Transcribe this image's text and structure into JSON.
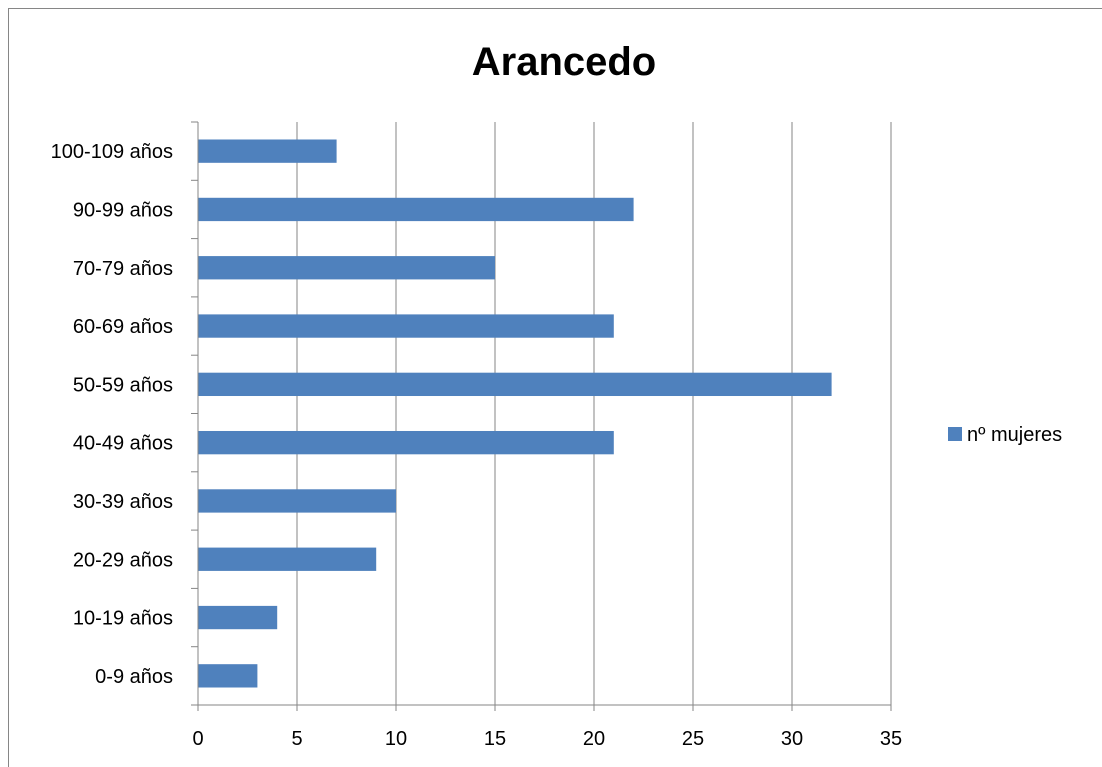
{
  "chart_data": {
    "type": "bar",
    "orientation": "horizontal",
    "title": "Arancedo",
    "categories": [
      "0-9 años",
      "10-19 años",
      "20-29 años",
      "30-39 años",
      "40-49 años",
      "50-59 años",
      "60-69 años",
      "70-79 años",
      "90-99 años",
      "100-109 años"
    ],
    "series": [
      {
        "name": "nº mujeres",
        "values": [
          3,
          4,
          9,
          10,
          21,
          32,
          21,
          15,
          22,
          7
        ],
        "color": "#4F81BD"
      }
    ],
    "xlim": [
      0,
      35
    ],
    "xticks": [
      0,
      5,
      10,
      15,
      20,
      25,
      30,
      35
    ],
    "grid": "vertical",
    "legend_position": "right",
    "xlabel": "",
    "ylabel": ""
  }
}
